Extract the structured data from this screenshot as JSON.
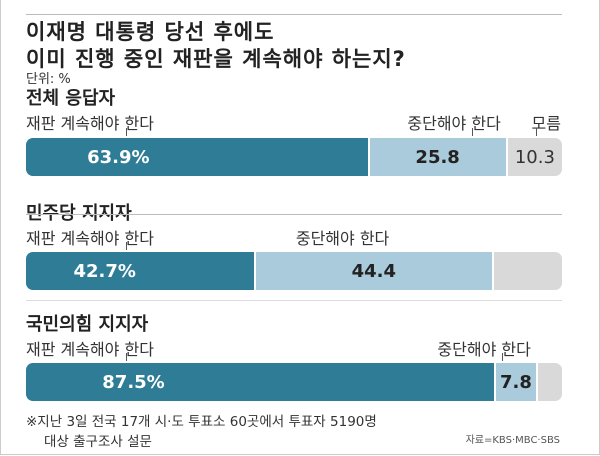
{
  "chart_data": {
    "type": "bar",
    "orientation": "horizontal-stacked",
    "title": "이재명 대통령 당선 후에도\n이미 진행 중인 재판을 계속해야 하는지?",
    "title_lines": [
      "이재명 대통령 당선 후에도",
      "이미 진행 중인 재판을 계속해야 하는지?"
    ],
    "unit": "단위: %",
    "groups": [
      {
        "name": "전체 응답자",
        "segments": [
          {
            "label": "재판 계속해야 한다",
            "value": 63.9,
            "display": "63.9%",
            "color": "#2f7c97"
          },
          {
            "label": "중단해야 한다",
            "value": 25.8,
            "display": "25.8",
            "color": "#a9cbdb"
          },
          {
            "label": "모름",
            "value": 10.3,
            "display": "10.3",
            "color": "#d9d9d9"
          }
        ]
      },
      {
        "name": "민주당 지지자",
        "segments": [
          {
            "label": "재판 계속해야 한다",
            "value": 42.7,
            "display": "42.7%",
            "color": "#2f7c97"
          },
          {
            "label": "중단해야 한다",
            "value": 44.4,
            "display": "44.4",
            "color": "#a9cbdb"
          },
          {
            "label": "",
            "value": 12.9,
            "display": "",
            "color": "#d9d9d9"
          }
        ]
      },
      {
        "name": "국민의힘 지지자",
        "segments": [
          {
            "label": "재판 계속해야 한다",
            "value": 87.5,
            "display": "87.5%",
            "color": "#2f7c97"
          },
          {
            "label": "중단해야 한다",
            "value": 7.8,
            "display": "7.8",
            "color": "#a9cbdb"
          },
          {
            "label": "",
            "value": 4.7,
            "display": "",
            "color": "#d9d9d9"
          }
        ]
      }
    ],
    "notes": [
      "※지난 3일 전국 17개 시·도 투표소 60곳에서 투표자 5190명",
      "대상 출구조사 설문"
    ],
    "source": "자료=KBS·MBC·SBS"
  }
}
